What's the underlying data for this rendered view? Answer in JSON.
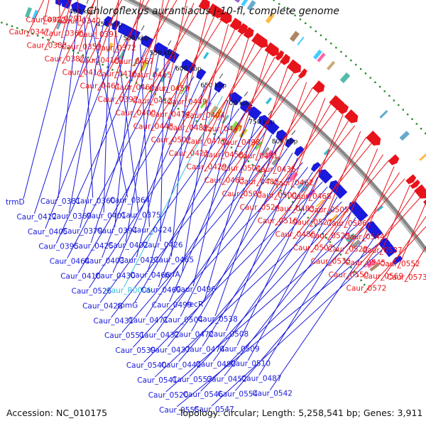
{
  "title": "Chloroflexus aurantiacus J-10-fl, complete genome",
  "footer": {
    "accession": "Accession: NC_010175",
    "topology": "Topology: circular; Length: 5,258,541 bp; Genes: 3,911"
  },
  "colors": {
    "forward": "#e8141b",
    "reverse": "#1a1adc",
    "rna": "#33c0dc",
    "backbone": "#888888",
    "ticks": "#2a8a2a"
  },
  "scale_marks": [
    "400 kbp",
    "450 kbp",
    "500 kbp",
    "550 kbp",
    "600 kbp",
    "650 kbp",
    "700 kbp",
    "750 kbp",
    "800 kbp"
  ],
  "forward_labels": [
    "Caur_0291",
    "Caur_0322",
    "Caur_0347",
    "Caur_0340",
    "Caur_0366",
    "Caur_0383",
    "Caur_0391",
    "Caur_0359",
    "Caur_0382",
    "Caur_0372",
    "Caur_0418",
    "Caur_0417",
    "Caur_0467",
    "Caur_0416",
    "Caur_0461",
    "Caur_0415",
    "Caur_0460",
    "Caur_0392",
    "Caur_0459",
    "Caur_0413",
    "Caur_0400",
    "Caur_0449",
    "Caur_0414",
    "Caur_0448",
    "Caur_0404",
    "Caur_0482",
    "Caur_0502",
    "Caur_0447",
    "Caur_0477",
    "Caur_0421",
    "Caur_0498",
    "Caur_0458",
    "Caur_0429",
    "Caur_0481",
    "Caur_0501",
    "Caur_0463",
    "Caur_0436",
    "Caur_0485",
    "Caur_0503",
    "Caur_0462",
    "Caur_0500",
    "Caur_0524",
    "Caur_0468",
    "Caur_0483",
    "Caur_0516",
    "Caur_0505",
    "Caur_0527",
    "Caur_0486",
    "Caur_0506",
    "Caur_0529",
    "Caur_0507",
    "Caur_0544",
    "Caur_0528",
    "Caur_0535",
    "Caur_0537",
    "Caur_0545",
    "Caur_0550",
    "Caur_0552",
    "Caur_0569",
    "Caur_0572",
    "Caur_0573"
  ],
  "reverse_labels": [
    "trmD",
    "Caur_0381",
    "Caur_0360",
    "Caur_0364",
    "Caur_0412",
    "Caur_0369",
    "Caur_0401",
    "Caur_0375",
    "Caur_0405",
    "Caur_0379",
    "Caur_0394",
    "Caur_0424",
    "Caur_0395",
    "Caur_0425",
    "Caur_0402",
    "Caur_0426",
    "Caur_0464",
    "Caur_0403",
    "Caur_0427",
    "Caur_0465",
    "Caur_0410",
    "Caur_0430",
    "Caur_0466",
    "prfA",
    "Caur_0526",
    "Caur_R0005",
    "Caur_0469",
    "Caur_0496",
    "Caur_0428",
    "rpmG",
    "Caur_0499",
    "recR",
    "Caur_0431",
    "Caur_0471",
    "Caur_0504",
    "Caur_0538",
    "Caur_0551",
    "Caur_0432",
    "Caur_0472",
    "Caur_0508",
    "Caur_0539",
    "Caur_0437",
    "Caur_0474",
    "Caur_0509",
    "Caur_0540",
    "Caur_0442",
    "Caur_0480",
    "Caur_0510",
    "Caur_0541",
    "Caur_0553",
    "Caur_0452",
    "Caur_0487",
    "Caur_0520",
    "Caur_0546",
    "Caur_0554",
    "Caur_0542",
    "Caur_0555",
    "Caur_0547"
  ]
}
